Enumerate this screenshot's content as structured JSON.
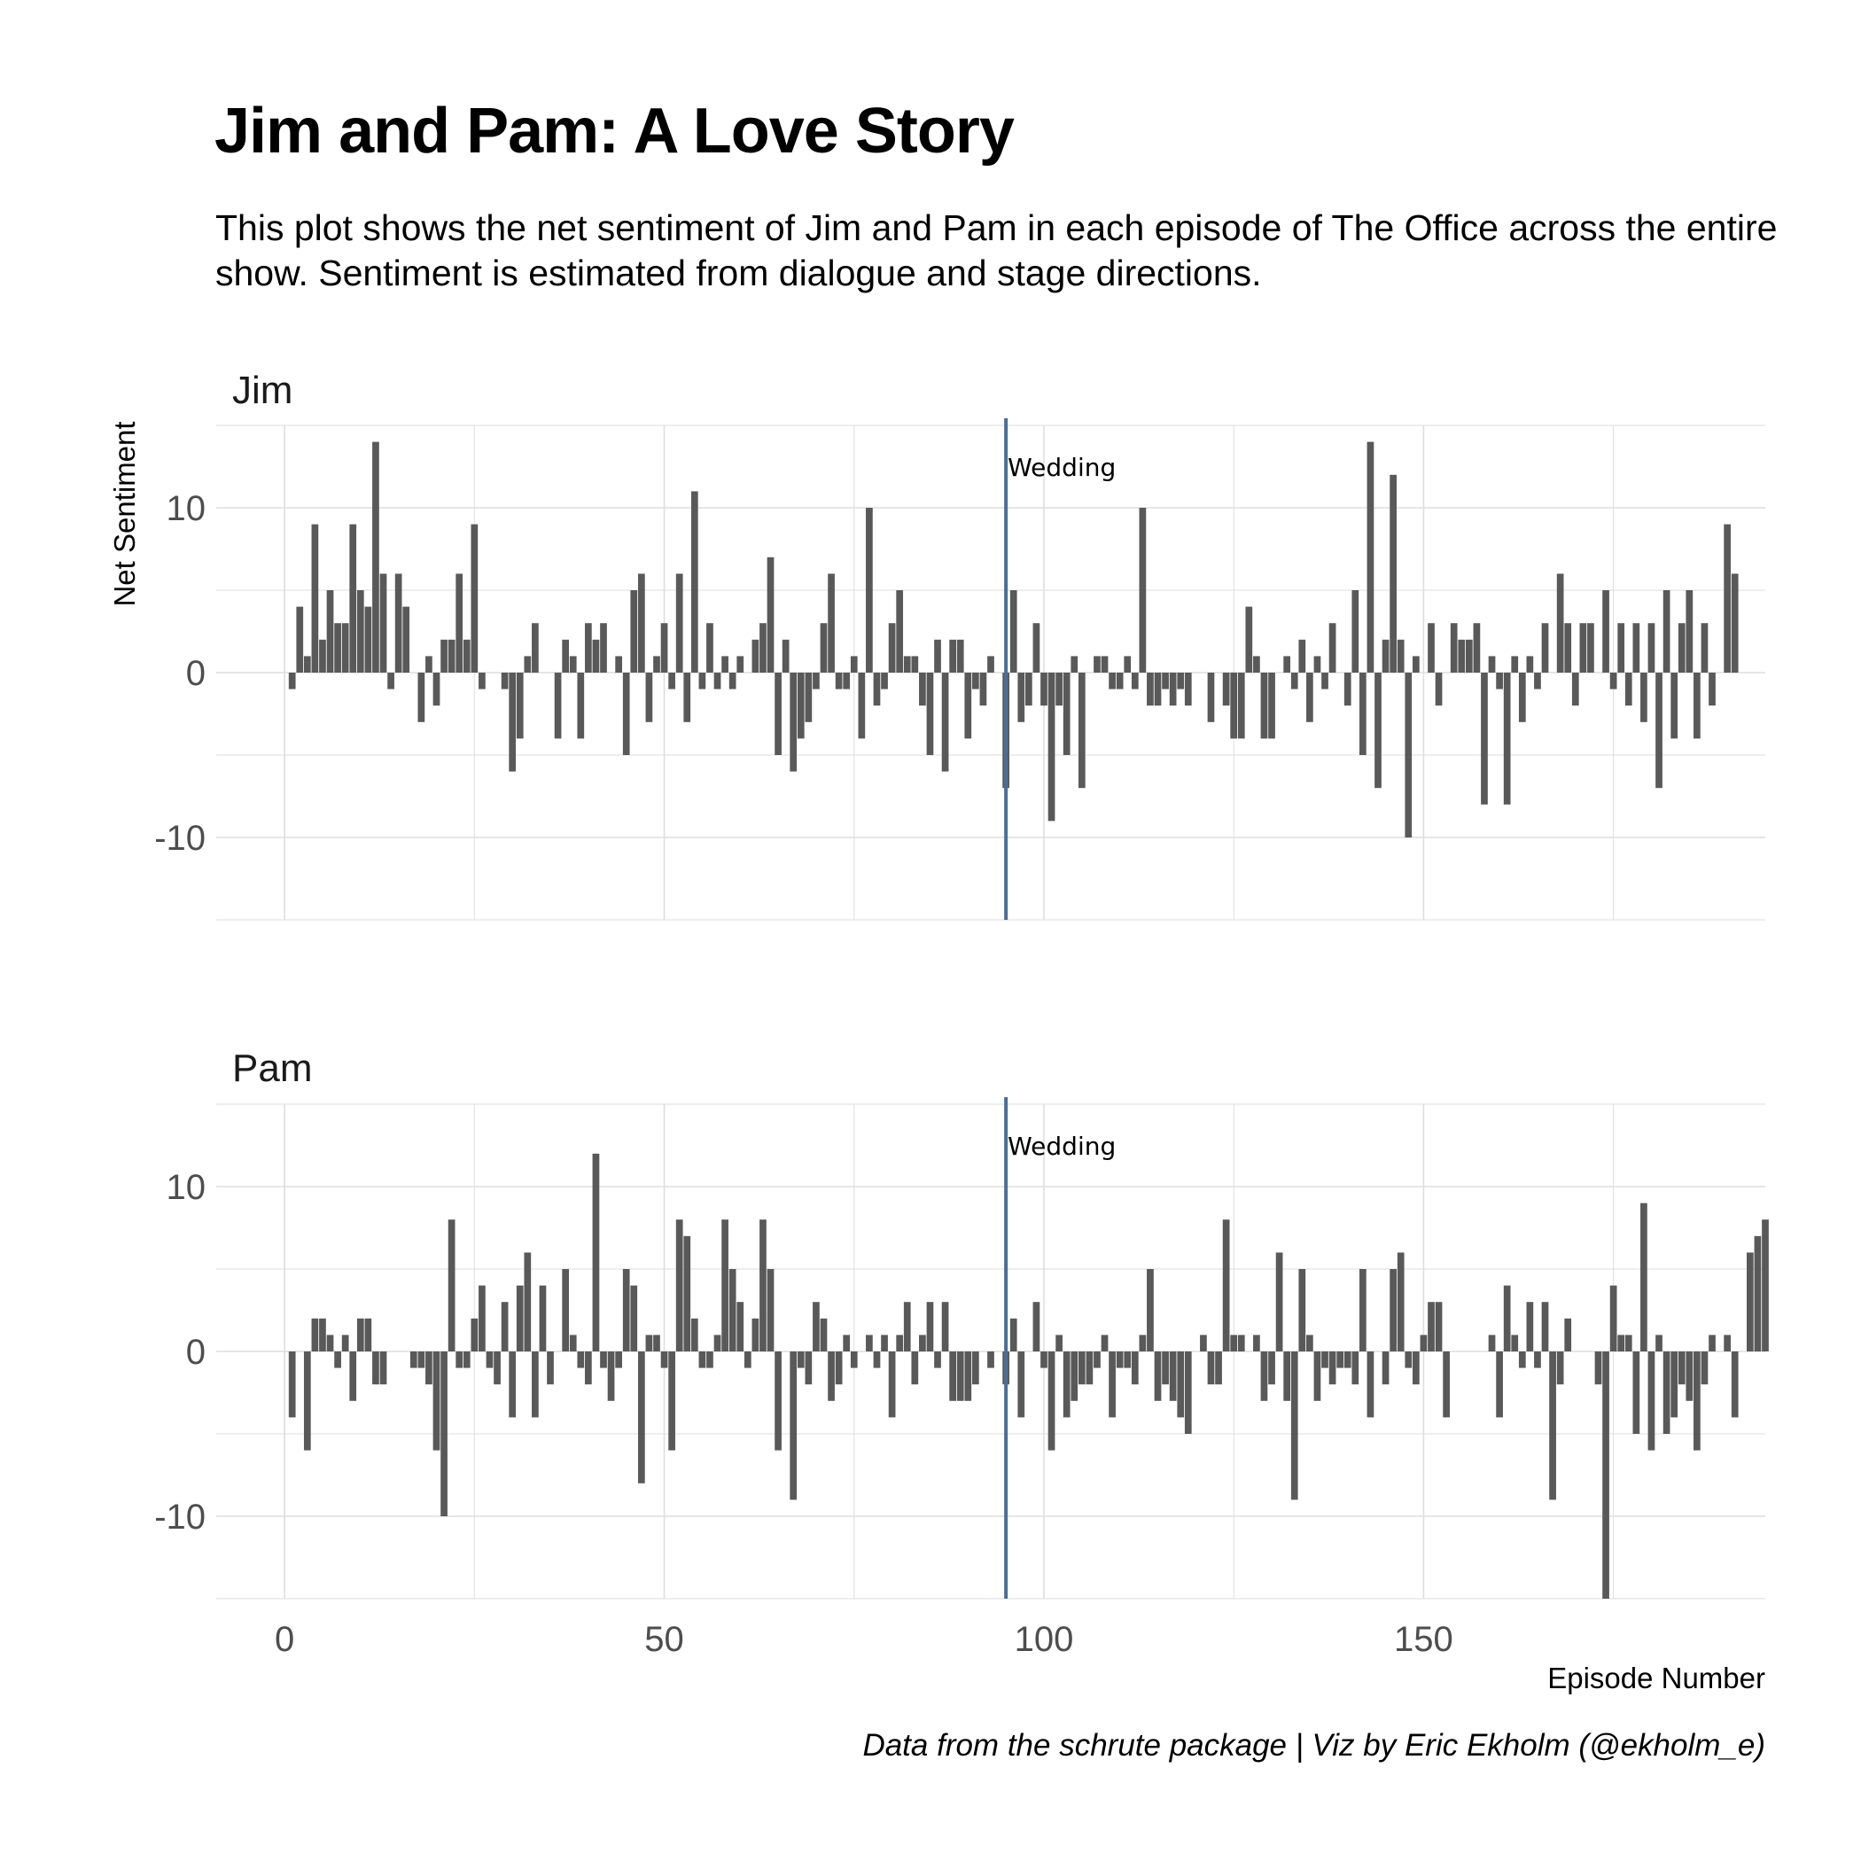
{
  "title": "Jim and Pam: A Love Story",
  "subtitle": "This plot shows the net sentiment of Jim and Pam in each episode of The Office across the entire show. Sentiment is estimated from dialogue and stage directions.",
  "caption": "Data from the schrute package | Viz by Eric Ekholm (@ekholm_e)",
  "colors": {
    "bar": "#595959",
    "wedding_line": "#4a6f97",
    "grid": "#dedede"
  },
  "chart_data": {
    "type": "bar",
    "xlabel": "Episode Number",
    "ylabel": "Net Sentiment",
    "xlim": [
      -9,
      195
    ],
    "ylim": [
      -15,
      15
    ],
    "x_ticks": [
      0,
      50,
      100,
      150
    ],
    "y_ticks": [
      -10,
      0,
      10
    ],
    "grid": true,
    "annotation": {
      "x": 95,
      "label": "Wedding"
    },
    "facets": [
      {
        "name": "Jim",
        "values": [
          -1,
          4,
          1,
          9,
          2,
          5,
          3,
          3,
          9,
          5,
          4,
          14,
          6,
          -1,
          6,
          4,
          0,
          -3,
          1,
          -2,
          2,
          2,
          6,
          2,
          9,
          -1,
          0,
          0,
          -1,
          -6,
          -4,
          1,
          3,
          0,
          0,
          -4,
          2,
          1,
          -4,
          3,
          2,
          3,
          0,
          1,
          -5,
          5,
          6,
          -3,
          1,
          3,
          -1,
          6,
          -3,
          11,
          -1,
          3,
          -1,
          1,
          -1,
          1,
          0,
          2,
          3,
          7,
          -5,
          2,
          -6,
          -4,
          -3,
          -1,
          3,
          6,
          -1,
          -1,
          1,
          -4,
          10,
          -2,
          -1,
          3,
          5,
          1,
          1,
          -2,
          -5,
          2,
          -6,
          2,
          2,
          -4,
          -1,
          -2,
          1,
          0,
          -7,
          5,
          -3,
          -2,
          3,
          -2,
          -9,
          -2,
          -5,
          1,
          -7,
          0,
          1,
          1,
          -1,
          -1,
          1,
          -1,
          10,
          -2,
          -2,
          -1,
          -2,
          -1,
          -2,
          0,
          0,
          -3,
          0,
          -2,
          -4,
          -4,
          4,
          1,
          -4,
          -4,
          0,
          1,
          -1,
          2,
          -3,
          1,
          -1,
          3,
          0,
          -2,
          5,
          -5,
          14,
          -7,
          2,
          12,
          2,
          -10,
          1,
          0,
          3,
          -2,
          0,
          3,
          2,
          2,
          3,
          -8,
          1,
          -1,
          -8,
          1,
          -3,
          1,
          -1,
          3,
          0,
          6,
          3,
          -2,
          3,
          3,
          0,
          5,
          -1,
          3,
          -2,
          3,
          -3,
          3,
          -7,
          5,
          -4,
          3,
          5,
          -4,
          3,
          -2,
          0,
          9,
          6
        ],
        "start_episode": 1
      },
      {
        "name": "Pam",
        "values": [
          -4,
          0,
          -6,
          2,
          2,
          1,
          -1,
          1,
          -3,
          2,
          2,
          -2,
          -2,
          0,
          0,
          0,
          -1,
          -1,
          -2,
          -6,
          -10,
          8,
          -1,
          -1,
          2,
          4,
          -1,
          -2,
          3,
          -4,
          4,
          6,
          -4,
          4,
          -2,
          0,
          5,
          1,
          -1,
          -2,
          12,
          -1,
          -3,
          -1,
          5,
          4,
          -8,
          1,
          1,
          -1,
          -6,
          8,
          7,
          2,
          -1,
          -1,
          1,
          8,
          5,
          3,
          -1,
          2,
          8,
          5,
          -6,
          0,
          -9,
          -1,
          -2,
          3,
          2,
          -3,
          -2,
          1,
          -1,
          0,
          1,
          -1,
          1,
          -4,
          1,
          3,
          -2,
          1,
          3,
          -1,
          3,
          -3,
          -3,
          -3,
          -2,
          0,
          -1,
          0,
          -2,
          2,
          -4,
          0,
          3,
          -1,
          -6,
          1,
          -4,
          -3,
          -2,
          -2,
          -1,
          1,
          -4,
          -1,
          -1,
          -2,
          1,
          5,
          -3,
          -2,
          -3,
          -4,
          -5,
          0,
          1,
          -2,
          -2,
          8,
          1,
          1,
          0,
          1,
          -3,
          -2,
          6,
          -3,
          -9,
          5,
          1,
          -3,
          -1,
          -2,
          -1,
          -1,
          -2,
          5,
          -4,
          0,
          -2,
          5,
          6,
          -1,
          -2,
          1,
          3,
          3,
          -4,
          0,
          0,
          0,
          0,
          0,
          1,
          -4,
          4,
          1,
          -1,
          3,
          -1,
          3,
          -9,
          -2,
          2,
          0,
          0,
          0,
          -2,
          -15,
          4,
          1,
          1,
          -5,
          9,
          -6,
          1,
          -5,
          -4,
          -2,
          -3,
          -6,
          -2,
          1,
          0,
          1,
          -4,
          0,
          6,
          7,
          8
        ],
        "start_episode": 1
      }
    ]
  }
}
